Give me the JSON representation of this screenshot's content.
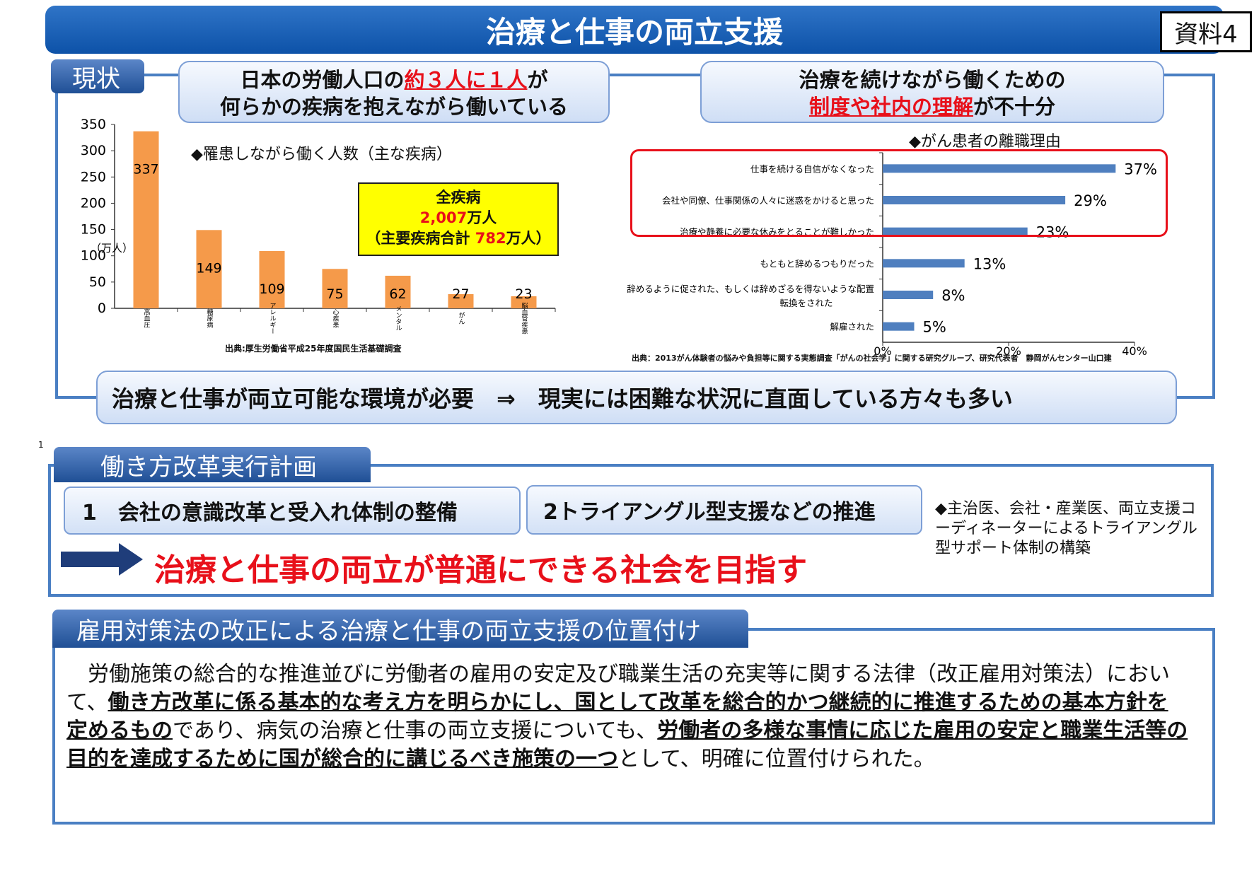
{
  "title": "治療と仕事の両立支援",
  "doc_tag": "資料4",
  "section1": {
    "label": "現状",
    "headline_left": {
      "pre": "日本の労働人口の",
      "emph": "約３人に１人",
      "post": "が",
      "line2": "何らかの疾病を抱えながら働いている"
    },
    "headline_right": {
      "line1": "治療を続けながら働くための",
      "emph": "制度や社内の理解",
      "post": "が不十分"
    },
    "bar_chart_caption": "◆罹患しながら働く人数（主な疾病）",
    "total_box": {
      "line1": "全疾病",
      "line2_value": "2,007",
      "line2_unit": "万人",
      "line3_pre": "（主要疾病合計 ",
      "line3_value": "782",
      "line3_post": "万人）"
    },
    "bar_chart_source": "出典:厚生労働省平成25年度国民生活基礎調査",
    "hbar_caption": "◆がん患者の離職理由",
    "hbar_source": "出典：2013がん体験者の悩みや負担等に関する実態調査「がんの社会学」に関する研究グループ、研究代表者　静岡がんセンター山口建",
    "conclusion": "治療と仕事が両立可能な環境が必要　⇒　現実には困難な状況に直面している方々も多い"
  },
  "chart_data": [
    {
      "type": "bar",
      "ylabel": "（万人）",
      "ylim": [
        0,
        350
      ],
      "yticks": [
        0,
        50,
        100,
        150,
        200,
        250,
        300,
        350
      ],
      "categories": [
        "高血圧",
        "糖尿病",
        "アレルギー",
        "心疾患",
        "メンタル",
        "がん",
        "脳血管疾患"
      ],
      "values": [
        337,
        149,
        109,
        75,
        62,
        27,
        23
      ],
      "color": "#f59a4a"
    },
    {
      "type": "bar",
      "orientation": "horizontal",
      "xlim": [
        0,
        40
      ],
      "xticks": [
        "0%",
        "20%",
        "40%"
      ],
      "categories": [
        "仕事を続ける自信がなくなった",
        "会社や同僚、仕事関係の人々に迷惑をかけると思った",
        "治療や静養に必要な休みをとることが難しかった",
        "もともと辞めるつもりだった",
        "辞めるように促された、もしくは辞めざるを得ないような配置転換をされた",
        "解雇された"
      ],
      "values": [
        37,
        29,
        23,
        13,
        8,
        5
      ],
      "value_labels": [
        "37%",
        "29%",
        "23%",
        "13%",
        "8%",
        "5%"
      ],
      "highlighted_top": 3,
      "color": "#4f7fbf"
    }
  ],
  "section2": {
    "label": "働き方改革実行計画",
    "item1": "1　会社の意識改革と受入れ体制の整備",
    "item2": "2トライアングル型支援などの推進",
    "note": "◆主治医、会社・産業医、両立支援コーディネーターによるトライアングル型サポート体制の構築",
    "goal": "治療と仕事の両立が普通にできる社会を目指す"
  },
  "section3": {
    "label": "雇用対策法の改正による治療と仕事の両立支援の位置付け",
    "p1": "　労働施策の総合的な推進並びに労働者の雇用の安定及び職業生活の充実等に関する法律（改正雇用対策法）において、",
    "b1": "働き方改革に係る基本的な考え方を明らかにし、国として改革を総合的かつ継続的に推進するための基本方針を定めるもの",
    "p2": "であり、病気の治療と仕事の両立支援についても、",
    "b2": "労働者の多様な事情に応じた雇用の安定と職業生活等の目的を達成するために国が総合的に講じるべき施策の一つ",
    "p3": "として、明確に位置付けられた。"
  },
  "stray_mark": "1"
}
